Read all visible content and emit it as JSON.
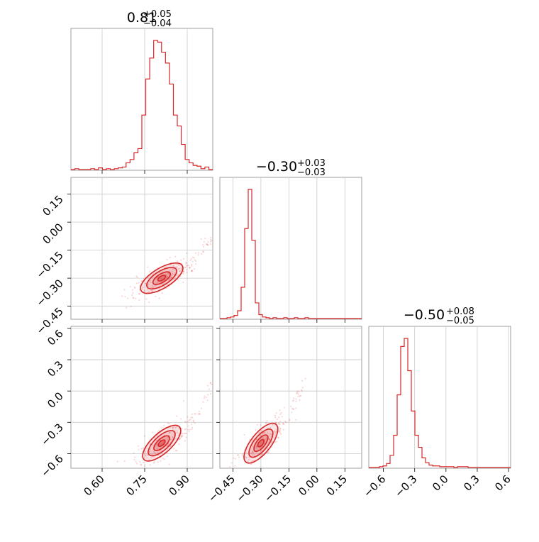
{
  "chart_data": {
    "type": "corner",
    "color": "#d62728",
    "grid": true,
    "parameters": [
      {
        "title_value": "0.81",
        "title_plus": "+0.05",
        "title_minus": "−0.04",
        "median": 0.81,
        "ticks": [
          "0.60",
          "0.75",
          "0.90"
        ],
        "tick_values": [
          0.6,
          0.75,
          0.9
        ],
        "range": [
          0.49,
          0.99
        ]
      },
      {
        "title_value": "−0.30",
        "title_plus": "+0.03",
        "title_minus": "−0.03",
        "median": -0.3,
        "ticks": [
          "−0.45",
          "−0.30",
          "−0.15",
          "0.00",
          "0.15"
        ],
        "tick_values": [
          -0.45,
          -0.3,
          -0.15,
          0.0,
          0.15
        ],
        "range": [
          -0.52,
          0.24
        ]
      },
      {
        "title_value": "−0.50",
        "title_plus": "+0.08",
        "title_minus": "−0.05",
        "median": -0.5,
        "ticks": [
          "−0.6",
          "−0.3",
          "0.0",
          "0.3",
          "0.6"
        ],
        "tick_values": [
          -0.6,
          -0.3,
          0.0,
          0.3,
          0.6
        ],
        "range": [
          -0.74,
          0.62
        ]
      }
    ],
    "histograms": [
      {
        "param": 0,
        "bin_edges_range": [
          0.49,
          0.99
        ],
        "counts": [
          0,
          1,
          0,
          0,
          0,
          1,
          0,
          2,
          0,
          1,
          0,
          1,
          2,
          3,
          8,
          12,
          20,
          25,
          65,
          108,
          133,
          154,
          152,
          140,
          127,
          102,
          65,
          52,
          30,
          12,
          8,
          5,
          4,
          1,
          3,
          0
        ]
      },
      {
        "param": 1,
        "bin_edges_range": [
          -0.52,
          0.24
        ],
        "counts": [
          0,
          0,
          1,
          2,
          4,
          10,
          40,
          115,
          165,
          100,
          20,
          5,
          2,
          1,
          0,
          1,
          0,
          0,
          1,
          0,
          0,
          1,
          0,
          0,
          1,
          0,
          0,
          0,
          0,
          0,
          0,
          0,
          0,
          0,
          0,
          0,
          0,
          0,
          0,
          0
        ]
      },
      {
        "param": 2,
        "bin_edges_range": [
          -0.74,
          0.62
        ],
        "counts": [
          0,
          0,
          0,
          1,
          2,
          5,
          15,
          40,
          90,
          150,
          160,
          120,
          70,
          40,
          25,
          12,
          6,
          3,
          2,
          2,
          1,
          1,
          1,
          1,
          0,
          1,
          1,
          1,
          0,
          0,
          0,
          0,
          0,
          0,
          0,
          0,
          0,
          0,
          0,
          0
        ]
      }
    ],
    "pairs": [
      {
        "x_param": 0,
        "y_param": 1,
        "center": [
          0.81,
          -0.3
        ],
        "trend_start": [
          0.7,
          -0.34
        ],
        "trend_end": [
          0.99,
          -0.07
        ]
      },
      {
        "x_param": 0,
        "y_param": 2,
        "center": [
          0.81,
          -0.5
        ],
        "trend_start": [
          0.7,
          -0.62
        ],
        "trend_end": [
          0.99,
          0.1
        ]
      },
      {
        "x_param": 1,
        "y_param": 2,
        "center": [
          -0.3,
          -0.5
        ],
        "trend_start": [
          -0.4,
          -0.62
        ],
        "trend_end": [
          -0.08,
          0.1
        ]
      }
    ]
  }
}
